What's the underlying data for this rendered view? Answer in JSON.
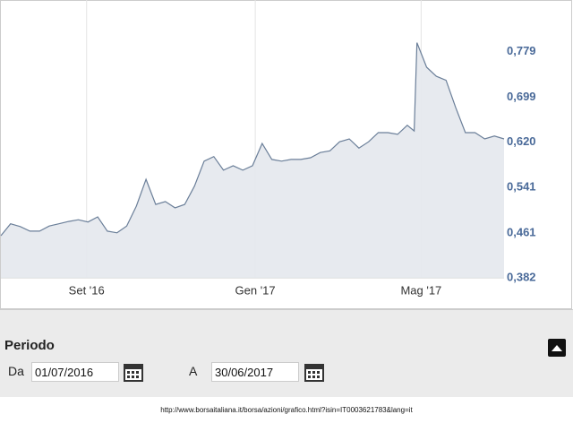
{
  "chart_data": {
    "type": "line",
    "x": [
      "2016-07-01",
      "2016-07-08",
      "2016-07-15",
      "2016-07-22",
      "2016-07-29",
      "2016-08-05",
      "2016-08-12",
      "2016-08-19",
      "2016-08-26",
      "2016-09-02",
      "2016-09-09",
      "2016-09-16",
      "2016-09-23",
      "2016-09-30",
      "2016-10-07",
      "2016-10-14",
      "2016-10-21",
      "2016-10-28",
      "2016-11-04",
      "2016-11-11",
      "2016-11-18",
      "2016-11-25",
      "2016-12-02",
      "2016-12-09",
      "2016-12-16",
      "2016-12-23",
      "2016-12-30",
      "2017-01-06",
      "2017-01-13",
      "2017-01-20",
      "2017-01-27",
      "2017-02-03",
      "2017-02-10",
      "2017-02-17",
      "2017-02-24",
      "2017-03-03",
      "2017-03-10",
      "2017-03-17",
      "2017-03-24",
      "2017-03-31",
      "2017-04-07",
      "2017-04-14",
      "2017-04-21",
      "2017-04-26",
      "2017-04-28",
      "2017-05-05",
      "2017-05-12",
      "2017-05-19",
      "2017-05-26",
      "2017-06-02",
      "2017-06-09",
      "2017-06-16",
      "2017-06-23",
      "2017-06-30"
    ],
    "series": [
      {
        "color": "#6b7f99",
        "values": [
          0.456,
          0.477,
          0.472,
          0.464,
          0.464,
          0.473,
          0.477,
          0.481,
          0.484,
          0.48,
          0.489,
          0.464,
          0.461,
          0.473,
          0.508,
          0.555,
          0.511,
          0.516,
          0.505,
          0.511,
          0.543,
          0.587,
          0.595,
          0.571,
          0.579,
          0.571,
          0.579,
          0.618,
          0.59,
          0.587,
          0.59,
          0.59,
          0.593,
          0.602,
          0.605,
          0.621,
          0.626,
          0.61,
          0.621,
          0.637,
          0.637,
          0.634,
          0.65,
          0.64,
          0.795,
          0.752,
          0.736,
          0.729,
          0.681,
          0.637,
          0.637,
          0.626,
          0.631,
          0.626
        ]
      }
    ],
    "xlim": [
      "2016-07-01",
      "2017-06-30"
    ],
    "xticks": [
      {
        "value": "2016-09-01",
        "label": "Set '16"
      },
      {
        "value": "2017-01-01",
        "label": "Gen '17"
      },
      {
        "value": "2017-05-01",
        "label": "Mag '17"
      }
    ],
    "ylim": [
      0.382,
      0.87
    ],
    "yticks": [
      {
        "value": 0.382,
        "label": "0,382"
      },
      {
        "value": 0.461,
        "label": "0,461"
      },
      {
        "value": 0.541,
        "label": "0,541"
      },
      {
        "value": 0.62,
        "label": "0,620"
      },
      {
        "value": 0.699,
        "label": "0,699"
      },
      {
        "value": 0.779,
        "label": "0,779"
      }
    ],
    "grid": true
  },
  "period": {
    "title": "Periodo",
    "from_label": "Da",
    "from": "01/07/2016",
    "to_label": "A",
    "to": "30/06/2017"
  },
  "source_url": "http://www.borsaitaliana.it/borsa/azioni/grafico.html?isin=IT0003621783&lang=it"
}
